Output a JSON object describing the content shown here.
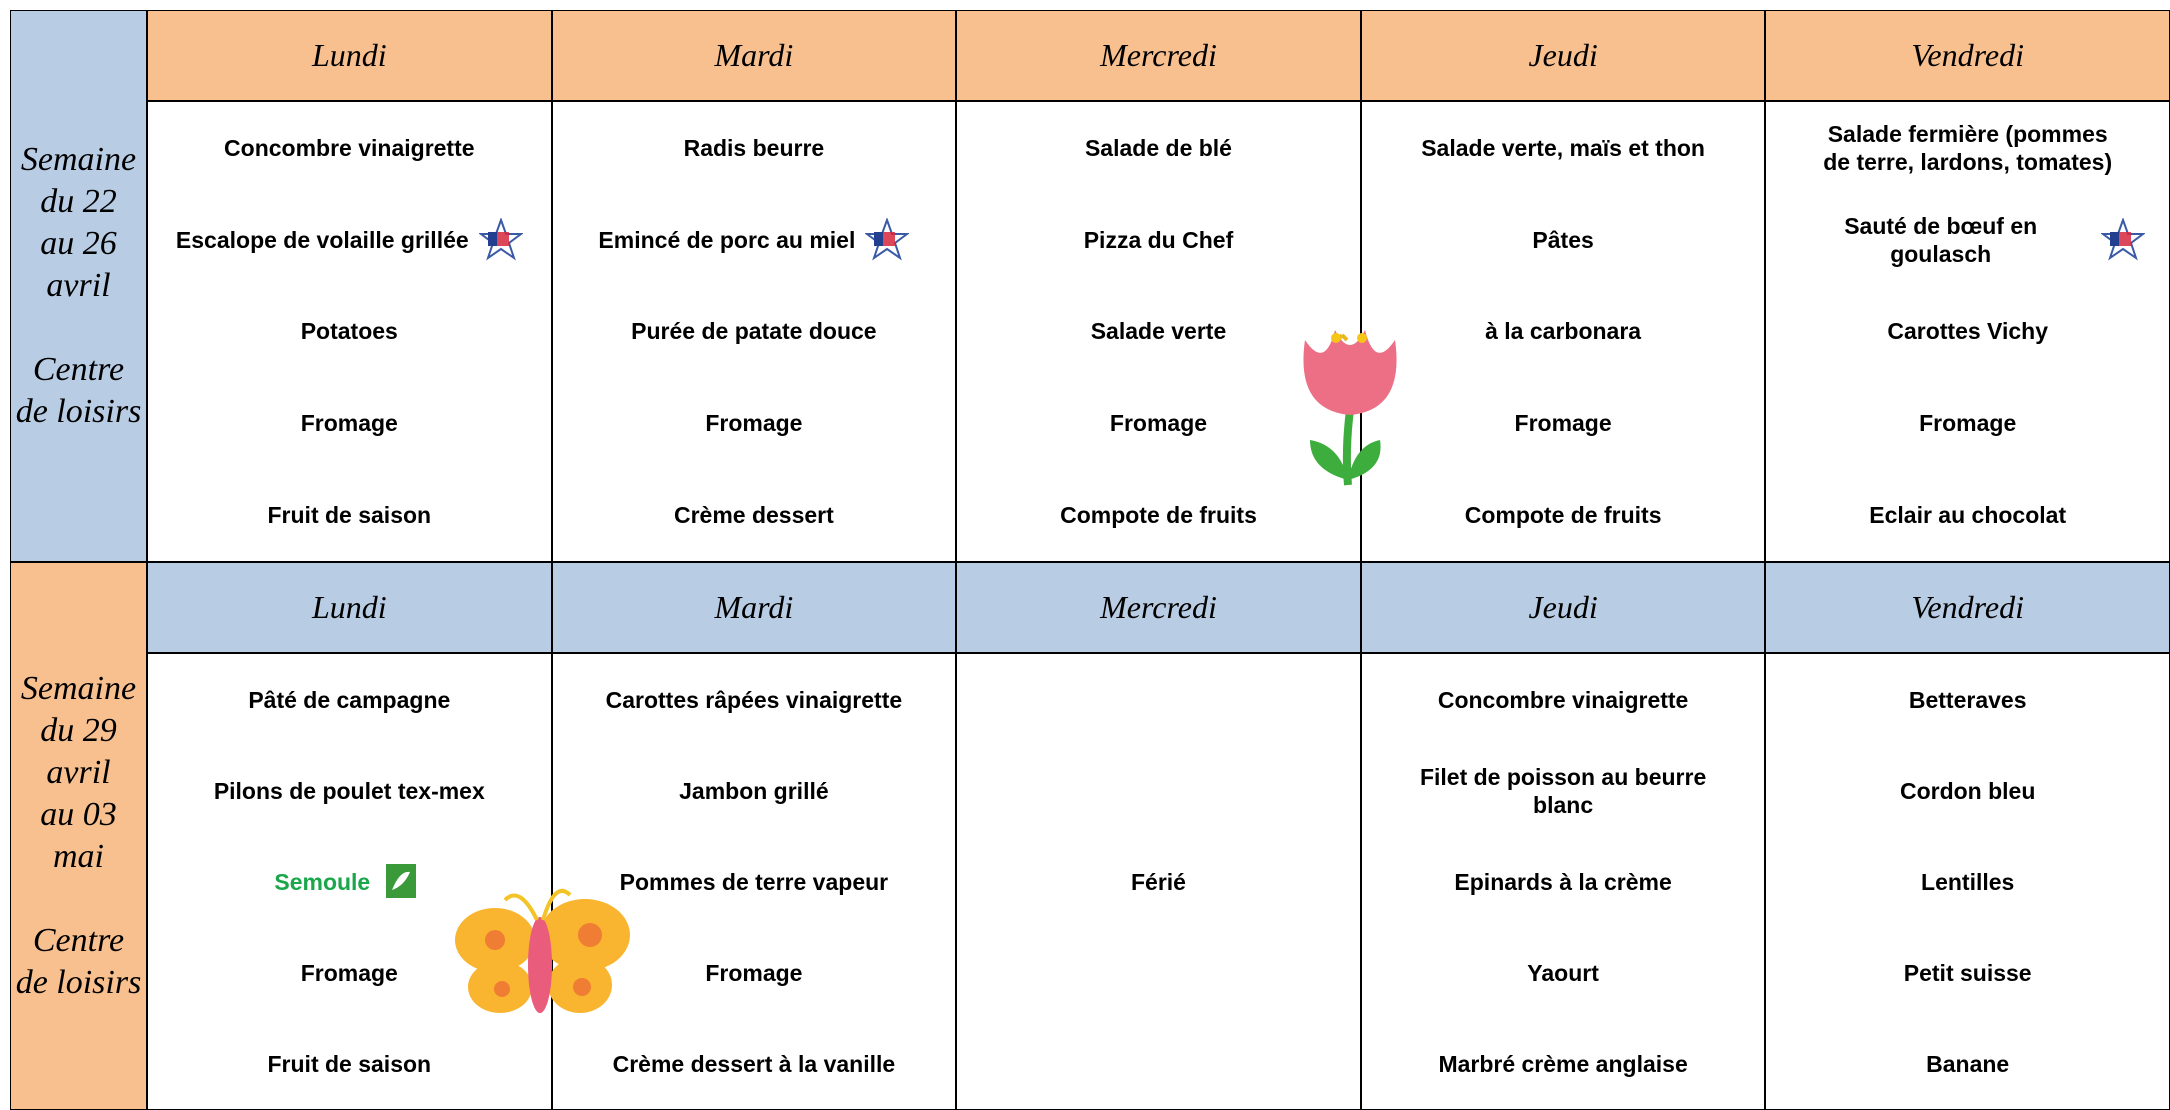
{
  "weeks": [
    {
      "side_color": "#b8cce4",
      "header_color": "#f9c08f",
      "period": [
        "Semaine",
        "du 22",
        "au 26",
        "avril"
      ],
      "place": [
        "Centre",
        "de loisirs"
      ],
      "days": [
        {
          "name": "Lundi",
          "dishes": [
            {
              "text": "Concombre vinaigrette"
            },
            {
              "text": "Escalope de volaille grillée",
              "icon": "star"
            },
            {
              "text": "Potatoes"
            },
            {
              "text": "Fromage"
            },
            {
              "text": "Fruit de saison"
            }
          ]
        },
        {
          "name": "Mardi",
          "dishes": [
            {
              "text": "Radis beurre"
            },
            {
              "text": "Emincé de porc au miel",
              "icon": "star"
            },
            {
              "text": "Purée de patate douce"
            },
            {
              "text": "Fromage"
            },
            {
              "text": "Crème dessert"
            }
          ]
        },
        {
          "name": "Mercredi",
          "dishes": [
            {
              "text": "Salade de blé"
            },
            {
              "text": "Pizza du Chef"
            },
            {
              "text": "Salade verte"
            },
            {
              "text": "Fromage"
            },
            {
              "text": "Compote de fruits"
            }
          ]
        },
        {
          "name": "Jeudi",
          "dishes": [
            {
              "text": "Salade verte, maïs et thon"
            },
            {
              "text": "Pâtes"
            },
            {
              "text": "à la carbonara"
            },
            {
              "text": "Fromage"
            },
            {
              "text": "Compote de fruits"
            }
          ]
        },
        {
          "name": "Vendredi",
          "dishes": [
            {
              "text": "Salade fermière (pommes de terre, lardons, tomates)"
            },
            {
              "text": "Sauté de bœuf en goulasch",
              "icon": "star"
            },
            {
              "text": "Carottes Vichy"
            },
            {
              "text": "Fromage"
            },
            {
              "text": "Eclair au chocolat"
            }
          ]
        }
      ]
    },
    {
      "side_color": "#f9c08f",
      "header_color": "#b8cce4",
      "period": [
        "Semaine",
        "du 29",
        "avril",
        "au 03",
        "mai"
      ],
      "place": [
        "Centre",
        "de loisirs"
      ],
      "days": [
        {
          "name": "Lundi",
          "dishes": [
            {
              "text": "Pâté de campagne"
            },
            {
              "text": "Pilons de poulet tex-mex"
            },
            {
              "text": "Semoule",
              "icon": "bio",
              "color": "#1aa64a"
            },
            {
              "text": "Fromage"
            },
            {
              "text": "Fruit de saison"
            }
          ]
        },
        {
          "name": "Mardi",
          "dishes": [
            {
              "text": "Carottes râpées vinaigrette"
            },
            {
              "text": "Jambon grillé"
            },
            {
              "text": "Pommes de terre vapeur"
            },
            {
              "text": "Fromage"
            },
            {
              "text": "Crème dessert à la vanille"
            }
          ]
        },
        {
          "name": "Mercredi",
          "dishes": [
            {
              "text": "Férié"
            }
          ]
        },
        {
          "name": "Jeudi",
          "dishes": [
            {
              "text": "Concombre vinaigrette"
            },
            {
              "text": "Filet de poisson au beurre blanc"
            },
            {
              "text": "Epinards à la crème"
            },
            {
              "text": "Yaourt"
            },
            {
              "text": "Marbré crème anglaise"
            }
          ]
        },
        {
          "name": "Vendredi",
          "dishes": [
            {
              "text": "Betteraves"
            },
            {
              "text": "Cordon bleu"
            },
            {
              "text": "Lentilles"
            },
            {
              "text": "Petit suisse"
            },
            {
              "text": "Banane"
            }
          ]
        }
      ]
    }
  ]
}
